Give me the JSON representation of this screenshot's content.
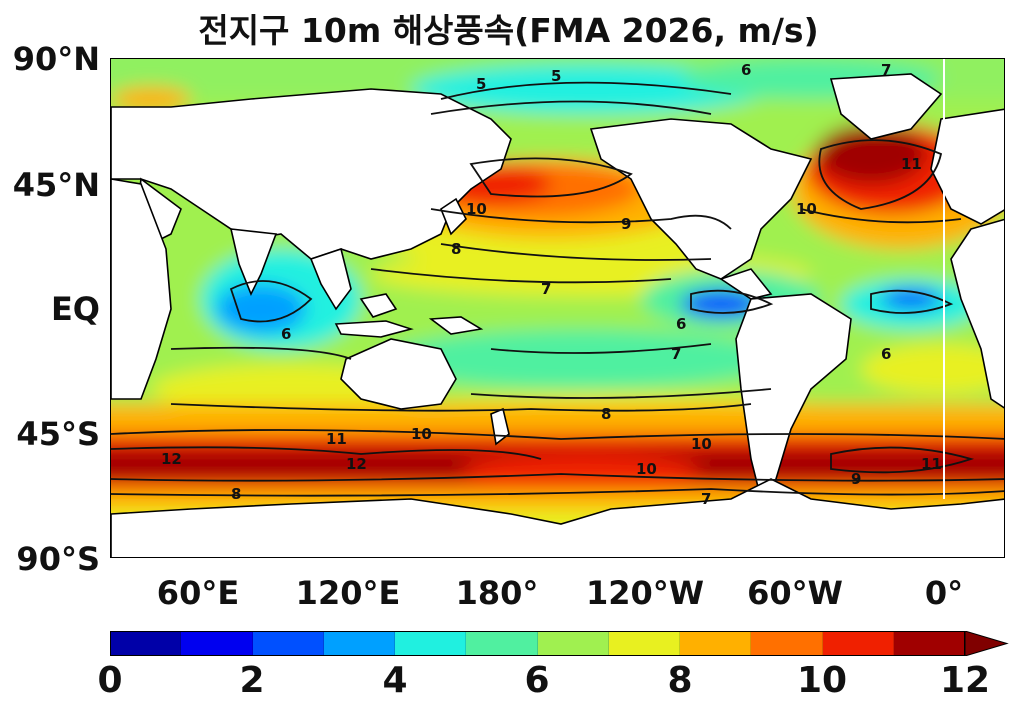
{
  "title": "전지구 10m 해상풍속(FMA 2026, m/s)",
  "lat_labels": [
    "90°N",
    "45°N",
    "EQ",
    "45°S",
    "90°S"
  ],
  "lon_labels": [
    "60°E",
    "120°E",
    "180°",
    "120°W",
    "60°W",
    "0°"
  ],
  "colorbar": {
    "ticks": [
      "0",
      "2",
      "4",
      "6",
      "8",
      "10",
      "12"
    ],
    "colors": [
      "#0000a8",
      "#0000f0",
      "#0050ff",
      "#00a0ff",
      "#20f0e0",
      "#50f0a0",
      "#a0f050",
      "#e8f020",
      "#ffb000",
      "#ff7000",
      "#f02000",
      "#a00000"
    ],
    "extend_color": "#800000"
  },
  "contour_labels": [
    "5",
    "6",
    "7",
    "8",
    "9",
    "10",
    "11",
    "12"
  ],
  "palette": {
    "land": "#ffffff",
    "coast": "#000000"
  }
}
